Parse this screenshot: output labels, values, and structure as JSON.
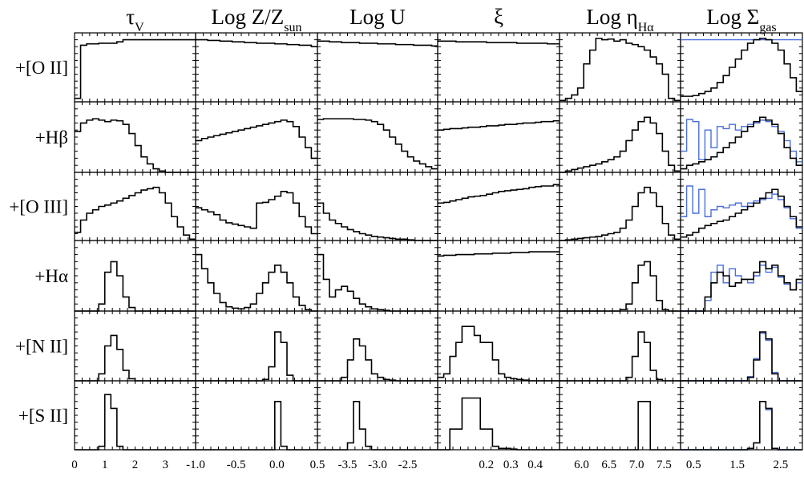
{
  "column_titles": [
    {
      "main": "τ",
      "sub": "V"
    },
    {
      "main": "Log Z/Z",
      "sub": "sun"
    },
    {
      "main": "Log U",
      "sub": ""
    },
    {
      "main": "ξ",
      "sub": ""
    },
    {
      "main": "Log η",
      "sub": "Hα"
    },
    {
      "main": "Log Σ",
      "sub": "gas"
    }
  ],
  "row_labels": [
    "+[O II]",
    "+Hβ",
    "+[O III]",
    "+Hα",
    "+[N II]",
    "+[S II]"
  ],
  "colors": {
    "primary": "#000000",
    "comparison": "#4a6fdc"
  },
  "chart_data": {
    "type": "histogram-grid",
    "columns": [
      {
        "name": "τV",
        "xlim": [
          0,
          4
        ],
        "tick_labels": [
          {
            "v": 0,
            "t": "0"
          },
          {
            "v": 1,
            "t": "1"
          },
          {
            "v": 2,
            "t": "2"
          },
          {
            "v": 3,
            "t": "3"
          }
        ]
      },
      {
        "name": "Log Z/Zsun",
        "xlim": [
          -1.0,
          0.5
        ],
        "tick_labels": [
          {
            "v": -1.0,
            "t": "-1.0"
          },
          {
            "v": -0.5,
            "t": "-0.5"
          },
          {
            "v": 0.0,
            "t": "0.0"
          },
          {
            "v": 0.5,
            "t": "0.5"
          }
        ]
      },
      {
        "name": "Log U",
        "xlim": [
          -4.0,
          -2.0
        ],
        "tick_labels": [
          {
            "v": -3.5,
            "t": "-3.5"
          },
          {
            "v": -3.0,
            "t": "-3.0"
          },
          {
            "v": -2.5,
            "t": "-2.5"
          }
        ]
      },
      {
        "name": "ξ",
        "xlim": [
          0.0,
          0.5
        ],
        "tick_labels": [
          {
            "v": 0.2,
            "t": "0.2"
          },
          {
            "v": 0.3,
            "t": "0.3"
          },
          {
            "v": 0.4,
            "t": "0.4"
          }
        ]
      },
      {
        "name": "Log ηHα",
        "xlim": [
          5.6,
          7.8
        ],
        "tick_labels": [
          {
            "v": 6.0,
            "t": "6.0"
          },
          {
            "v": 6.5,
            "t": "6.5"
          },
          {
            "v": 7.0,
            "t": "7.0"
          },
          {
            "v": 7.5,
            "t": "7.5"
          }
        ]
      },
      {
        "name": "Log Σgas",
        "xlim": [
          0.2,
          3.0
        ],
        "tick_labels": [
          {
            "v": 0.5,
            "t": "0.5"
          },
          {
            "v": 1.5,
            "t": "1.5"
          },
          {
            "v": 2.5,
            "t": "2.5"
          }
        ]
      }
    ],
    "rows": [
      "+[O II]",
      "+Hβ",
      "+[O III]",
      "+Hα",
      "+[N II]",
      "+[S II]"
    ],
    "panels": [
      [
        {
          "black": [
            0.05,
            0.82,
            0.84,
            0.84,
            0.85,
            0.85,
            0.85,
            0.87,
            0.9,
            0.9,
            0.9,
            0.9,
            0.9,
            0.9,
            0.9,
            0.9,
            0.9,
            0.9,
            0.9,
            0.9
          ]
        },
        {
          "black": [
            0.9,
            0.9,
            0.89,
            0.89,
            0.88,
            0.88,
            0.87,
            0.87,
            0.86,
            0.86,
            0.85,
            0.85,
            0.85,
            0.84,
            0.84,
            0.83,
            0.83,
            0.82,
            0.82,
            0.8
          ]
        },
        {
          "black": [
            0.88,
            0.88,
            0.87,
            0.87,
            0.86,
            0.86,
            0.86,
            0.85,
            0.85,
            0.85,
            0.84,
            0.84,
            0.84,
            0.83,
            0.83,
            0.83,
            0.82,
            0.82,
            0.82,
            0.81
          ]
        },
        {
          "black": [
            0.88,
            0.88,
            0.88,
            0.87,
            0.87,
            0.87,
            0.87,
            0.87,
            0.86,
            0.86,
            0.86,
            0.86,
            0.86,
            0.85,
            0.85,
            0.85,
            0.85,
            0.85,
            0.84,
            0.84
          ]
        },
        {
          "black": [
            0.02,
            0.05,
            0.1,
            0.2,
            0.55,
            0.75,
            0.92,
            0.9,
            0.91,
            0.88,
            0.9,
            0.85,
            0.83,
            0.8,
            0.75,
            0.65,
            0.55,
            0.4,
            0.05,
            0.02
          ]
        },
        {
          "black": [
            0.08,
            0.08,
            0.09,
            0.12,
            0.15,
            0.2,
            0.28,
            0.38,
            0.5,
            0.62,
            0.75,
            0.85,
            0.9,
            0.92,
            0.9,
            0.85,
            0.75,
            0.55,
            0.35,
            0.15
          ],
          "blue": [
            0.9,
            0.9,
            0.9,
            0.9,
            0.9,
            0.9,
            0.9,
            0.9,
            0.9,
            0.9,
            0.9,
            0.9,
            0.9,
            0.9,
            0.9,
            0.9,
            0.9,
            0.9,
            0.9,
            0.9
          ]
        }
      ],
      [
        {
          "black": [
            0.58,
            0.7,
            0.74,
            0.76,
            0.74,
            0.72,
            0.74,
            0.73,
            0.68,
            0.55,
            0.38,
            0.22,
            0.12,
            0.05,
            0.02,
            0.0,
            0.0,
            0.0,
            0.0,
            0.0
          ]
        },
        {
          "black": [
            0.45,
            0.48,
            0.5,
            0.52,
            0.54,
            0.56,
            0.58,
            0.6,
            0.62,
            0.64,
            0.66,
            0.68,
            0.7,
            0.72,
            0.74,
            0.72,
            0.65,
            0.5,
            0.35,
            0.2
          ]
        },
        {
          "black": [
            0.75,
            0.76,
            0.76,
            0.76,
            0.76,
            0.76,
            0.75,
            0.75,
            0.74,
            0.72,
            0.68,
            0.6,
            0.5,
            0.4,
            0.3,
            0.22,
            0.16,
            0.12,
            0.08,
            0.05
          ]
        },
        {
          "black": [
            0.6,
            0.61,
            0.62,
            0.62,
            0.63,
            0.64,
            0.64,
            0.65,
            0.66,
            0.66,
            0.67,
            0.68,
            0.68,
            0.69,
            0.7,
            0.7,
            0.71,
            0.72,
            0.72,
            0.73
          ]
        },
        {
          "black": [
            0.0,
            0.02,
            0.04,
            0.06,
            0.08,
            0.1,
            0.12,
            0.15,
            0.18,
            0.22,
            0.3,
            0.45,
            0.6,
            0.72,
            0.78,
            0.7,
            0.55,
            0.3,
            0.1,
            0.02
          ]
        },
        {
          "black": [
            0.05,
            0.1,
            0.12,
            0.15,
            0.18,
            0.22,
            0.28,
            0.35,
            0.42,
            0.5,
            0.58,
            0.65,
            0.72,
            0.78,
            0.74,
            0.68,
            0.55,
            0.35,
            0.2,
            0.1
          ],
          "blue": [
            0.3,
            0.75,
            0.72,
            0.18,
            0.6,
            0.35,
            0.65,
            0.62,
            0.68,
            0.6,
            0.65,
            0.68,
            0.7,
            0.74,
            0.72,
            0.65,
            0.58,
            0.45,
            0.3,
            0.15
          ]
        }
      ],
      [
        {
          "black": [
            0.12,
            0.3,
            0.4,
            0.45,
            0.5,
            0.52,
            0.55,
            0.58,
            0.62,
            0.66,
            0.7,
            0.74,
            0.76,
            0.78,
            0.7,
            0.55,
            0.35,
            0.2,
            0.08,
            0.02
          ]
        },
        {
          "black": [
            0.48,
            0.45,
            0.42,
            0.38,
            0.3,
            0.26,
            0.24,
            0.22,
            0.2,
            0.18,
            0.55,
            0.56,
            0.6,
            0.65,
            0.72,
            0.7,
            0.55,
            0.35,
            0.2,
            0.1
          ]
        },
        {
          "black": [
            0.55,
            0.4,
            0.3,
            0.25,
            0.2,
            0.16,
            0.13,
            0.1,
            0.08,
            0.06,
            0.05,
            0.04,
            0.03,
            0.02,
            0.02,
            0.01,
            0.0,
            0.0,
            0.0,
            0.0
          ]
        },
        {
          "black": [
            0.55,
            0.56,
            0.58,
            0.6,
            0.62,
            0.64,
            0.65,
            0.66,
            0.68,
            0.7,
            0.72,
            0.73,
            0.74,
            0.75,
            0.76,
            0.78,
            0.79,
            0.8,
            0.8,
            0.82
          ]
        },
        {
          "black": [
            0.0,
            0.01,
            0.02,
            0.03,
            0.04,
            0.05,
            0.06,
            0.08,
            0.1,
            0.12,
            0.18,
            0.3,
            0.5,
            0.7,
            0.78,
            0.7,
            0.5,
            0.25,
            0.08,
            0.02
          ]
        },
        {
          "black": [
            0.05,
            0.08,
            0.12,
            0.18,
            0.22,
            0.25,
            0.28,
            0.3,
            0.35,
            0.4,
            0.45,
            0.5,
            0.55,
            0.62,
            0.7,
            0.75,
            0.65,
            0.5,
            0.35,
            0.2
          ],
          "blue": [
            0.35,
            0.8,
            0.4,
            0.75,
            0.35,
            0.45,
            0.5,
            0.48,
            0.52,
            0.55,
            0.5,
            0.55,
            0.58,
            0.6,
            0.62,
            0.68,
            0.6,
            0.48,
            0.32,
            0.18
          ]
        }
      ],
      [
        {
          "black": [
            0.0,
            0.0,
            0.0,
            0.0,
            0.1,
            0.55,
            0.7,
            0.5,
            0.2,
            0.05,
            0.0,
            0.0,
            0.0,
            0.0,
            0.0,
            0.0,
            0.0,
            0.0,
            0.0,
            0.0
          ]
        },
        {
          "black": [
            0.8,
            0.6,
            0.4,
            0.25,
            0.12,
            0.06,
            0.04,
            0.03,
            0.05,
            0.1,
            0.25,
            0.4,
            0.55,
            0.65,
            0.55,
            0.4,
            0.2,
            0.08,
            0.02,
            0.0
          ]
        },
        {
          "black": [
            0.8,
            0.45,
            0.2,
            0.3,
            0.35,
            0.28,
            0.18,
            0.1,
            0.06,
            0.03,
            0.02,
            0.01,
            0.0,
            0.0,
            0.0,
            0.0,
            0.0,
            0.0,
            0.0,
            0.0
          ]
        },
        {
          "black": [
            0.78,
            0.79,
            0.79,
            0.8,
            0.8,
            0.8,
            0.81,
            0.81,
            0.81,
            0.82,
            0.82,
            0.82,
            0.83,
            0.83,
            0.83,
            0.84,
            0.84,
            0.84,
            0.84,
            0.84
          ]
        },
        {
          "black": [
            0.0,
            0.0,
            0.0,
            0.0,
            0.0,
            0.0,
            0.0,
            0.0,
            0.0,
            0.0,
            0.02,
            0.1,
            0.4,
            0.65,
            0.7,
            0.5,
            0.15,
            0.02,
            0.0,
            0.0
          ]
        },
        {
          "black": [
            0.0,
            0.0,
            0.0,
            0.0,
            0.2,
            0.4,
            0.55,
            0.5,
            0.35,
            0.4,
            0.45,
            0.45,
            0.55,
            0.7,
            0.6,
            0.65,
            0.5,
            0.4,
            0.3,
            0.45
          ],
          "blue": [
            0.0,
            0.0,
            0.0,
            0.0,
            0.15,
            0.55,
            0.65,
            0.4,
            0.6,
            0.5,
            0.45,
            0.4,
            0.5,
            0.65,
            0.55,
            0.62,
            0.48,
            0.38,
            0.3,
            0.4
          ]
        }
      ],
      [
        {
          "black": [
            0.0,
            0.0,
            0.0,
            0.0,
            0.1,
            0.5,
            0.65,
            0.45,
            0.15,
            0.03,
            0.0,
            0.0,
            0.0,
            0.0,
            0.0,
            0.0,
            0.0,
            0.0,
            0.0,
            0.0
          ]
        },
        {
          "black": [
            0.0,
            0.0,
            0.0,
            0.0,
            0.0,
            0.0,
            0.0,
            0.0,
            0.0,
            0.0,
            0.0,
            0.02,
            0.2,
            0.7,
            0.55,
            0.08,
            0.0,
            0.0,
            0.0,
            0.0
          ]
        },
        {
          "black": [
            0.0,
            0.0,
            0.0,
            0.0,
            0.05,
            0.3,
            0.6,
            0.5,
            0.3,
            0.1,
            0.05,
            0.02,
            0.01,
            0.0,
            0.0,
            0.0,
            0.0,
            0.0,
            0.0,
            0.0
          ]
        },
        {
          "black": [
            0.05,
            0.1,
            0.35,
            0.55,
            0.78,
            0.78,
            0.65,
            0.55,
            0.55,
            0.3,
            0.1,
            0.05,
            0.03,
            0.02,
            0.01,
            0.0,
            0.0,
            0.0,
            0.0,
            0.0
          ]
        },
        {
          "black": [
            0.0,
            0.0,
            0.0,
            0.0,
            0.0,
            0.0,
            0.0,
            0.0,
            0.0,
            0.0,
            0.0,
            0.05,
            0.35,
            0.7,
            0.55,
            0.15,
            0.02,
            0.0,
            0.0,
            0.0
          ]
        },
        {
          "black": [
            0.0,
            0.0,
            0.0,
            0.0,
            0.0,
            0.0,
            0.0,
            0.0,
            0.0,
            0.0,
            0.0,
            0.05,
            0.3,
            0.7,
            0.6,
            0.1,
            0.0,
            0.0,
            0.0,
            0.0
          ],
          "blue": [
            0.0,
            0.0,
            0.0,
            0.0,
            0.0,
            0.0,
            0.0,
            0.0,
            0.0,
            0.0,
            0.0,
            0.06,
            0.32,
            0.68,
            0.58,
            0.12,
            0.0,
            0.0,
            0.0,
            0.0
          ]
        }
      ],
      [
        {
          "black": [
            0.0,
            0.0,
            0.0,
            0.0,
            0.05,
            0.8,
            0.6,
            0.05,
            0.0,
            0.0,
            0.0,
            0.0,
            0.0,
            0.0,
            0.0,
            0.0,
            0.0,
            0.0,
            0.0,
            0.0
          ]
        },
        {
          "black": [
            0.0,
            0.0,
            0.0,
            0.0,
            0.0,
            0.0,
            0.0,
            0.0,
            0.0,
            0.0,
            0.0,
            0.0,
            0.0,
            0.7,
            0.05,
            0.0,
            0.0,
            0.0,
            0.0,
            0.0
          ]
        },
        {
          "black": [
            0.0,
            0.0,
            0.0,
            0.0,
            0.0,
            0.1,
            0.7,
            0.3,
            0.05,
            0.0,
            0.0,
            0.0,
            0.0,
            0.0,
            0.0,
            0.0,
            0.0,
            0.0,
            0.0,
            0.0
          ]
        },
        {
          "black": [
            0.0,
            0.0,
            0.3,
            0.3,
            0.75,
            0.75,
            0.75,
            0.3,
            0.3,
            0.05,
            0.02,
            0.02,
            0.01,
            0.0,
            0.0,
            0.0,
            0.0,
            0.0,
            0.0,
            0.0
          ]
        },
        {
          "black": [
            0.0,
            0.0,
            0.0,
            0.0,
            0.0,
            0.0,
            0.0,
            0.0,
            0.0,
            0.0,
            0.0,
            0.0,
            0.0,
            0.7,
            0.7,
            0.0,
            0.0,
            0.0,
            0.0,
            0.0
          ]
        },
        {
          "black": [
            0.0,
            0.0,
            0.0,
            0.0,
            0.0,
            0.0,
            0.0,
            0.0,
            0.0,
            0.0,
            0.0,
            0.02,
            0.1,
            0.7,
            0.6,
            0.02,
            0.0,
            0.0,
            0.0,
            0.0
          ],
          "blue": [
            0.0,
            0.0,
            0.0,
            0.0,
            0.0,
            0.0,
            0.0,
            0.0,
            0.0,
            0.0,
            0.0,
            0.02,
            0.1,
            0.7,
            0.58,
            0.02,
            0.0,
            0.0,
            0.0,
            0.0
          ]
        }
      ]
    ]
  }
}
